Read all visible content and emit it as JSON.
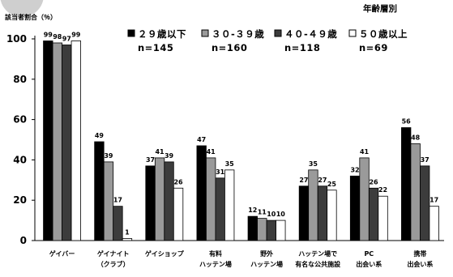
{
  "chart_data": {
    "type": "bar",
    "title": "年齢層別",
    "ylabel": "該当者割合（％）",
    "ylim": [
      0,
      100
    ],
    "yticks": [
      0,
      20,
      40,
      60,
      80,
      100
    ],
    "grid": false,
    "legend_position": "top-right",
    "categories": [
      [
        "ゲイバー"
      ],
      [
        "ゲイナイト",
        "（クラブ）"
      ],
      [
        "ゲイショップ"
      ],
      [
        "有料",
        "ハッテン場"
      ],
      [
        "野外",
        "ハッテン場"
      ],
      [
        "ハッテン場で",
        "有名な公共施設"
      ],
      [
        "PC",
        "出会い系"
      ],
      [
        "携帯",
        "出会い系"
      ]
    ],
    "series": [
      {
        "name": "２９歳以下",
        "n": "n=145",
        "color": "#000000",
        "values": [
          99,
          49,
          37,
          47,
          12,
          27,
          32,
          56
        ]
      },
      {
        "name": "３０-３９歳",
        "n": "n=160",
        "color": "#9a9a9a",
        "values": [
          98,
          39,
          41,
          41,
          11,
          35,
          41,
          48
        ]
      },
      {
        "name": "４０-４９歳",
        "n": "n=118",
        "color": "#3c3c3c",
        "values": [
          97,
          17,
          39,
          31,
          10,
          27,
          26,
          37
        ]
      },
      {
        "name": "５０歳以上",
        "n": "n=69",
        "color": "#ffffff",
        "values": [
          99,
          1,
          26,
          35,
          10,
          25,
          22,
          17
        ]
      }
    ]
  }
}
